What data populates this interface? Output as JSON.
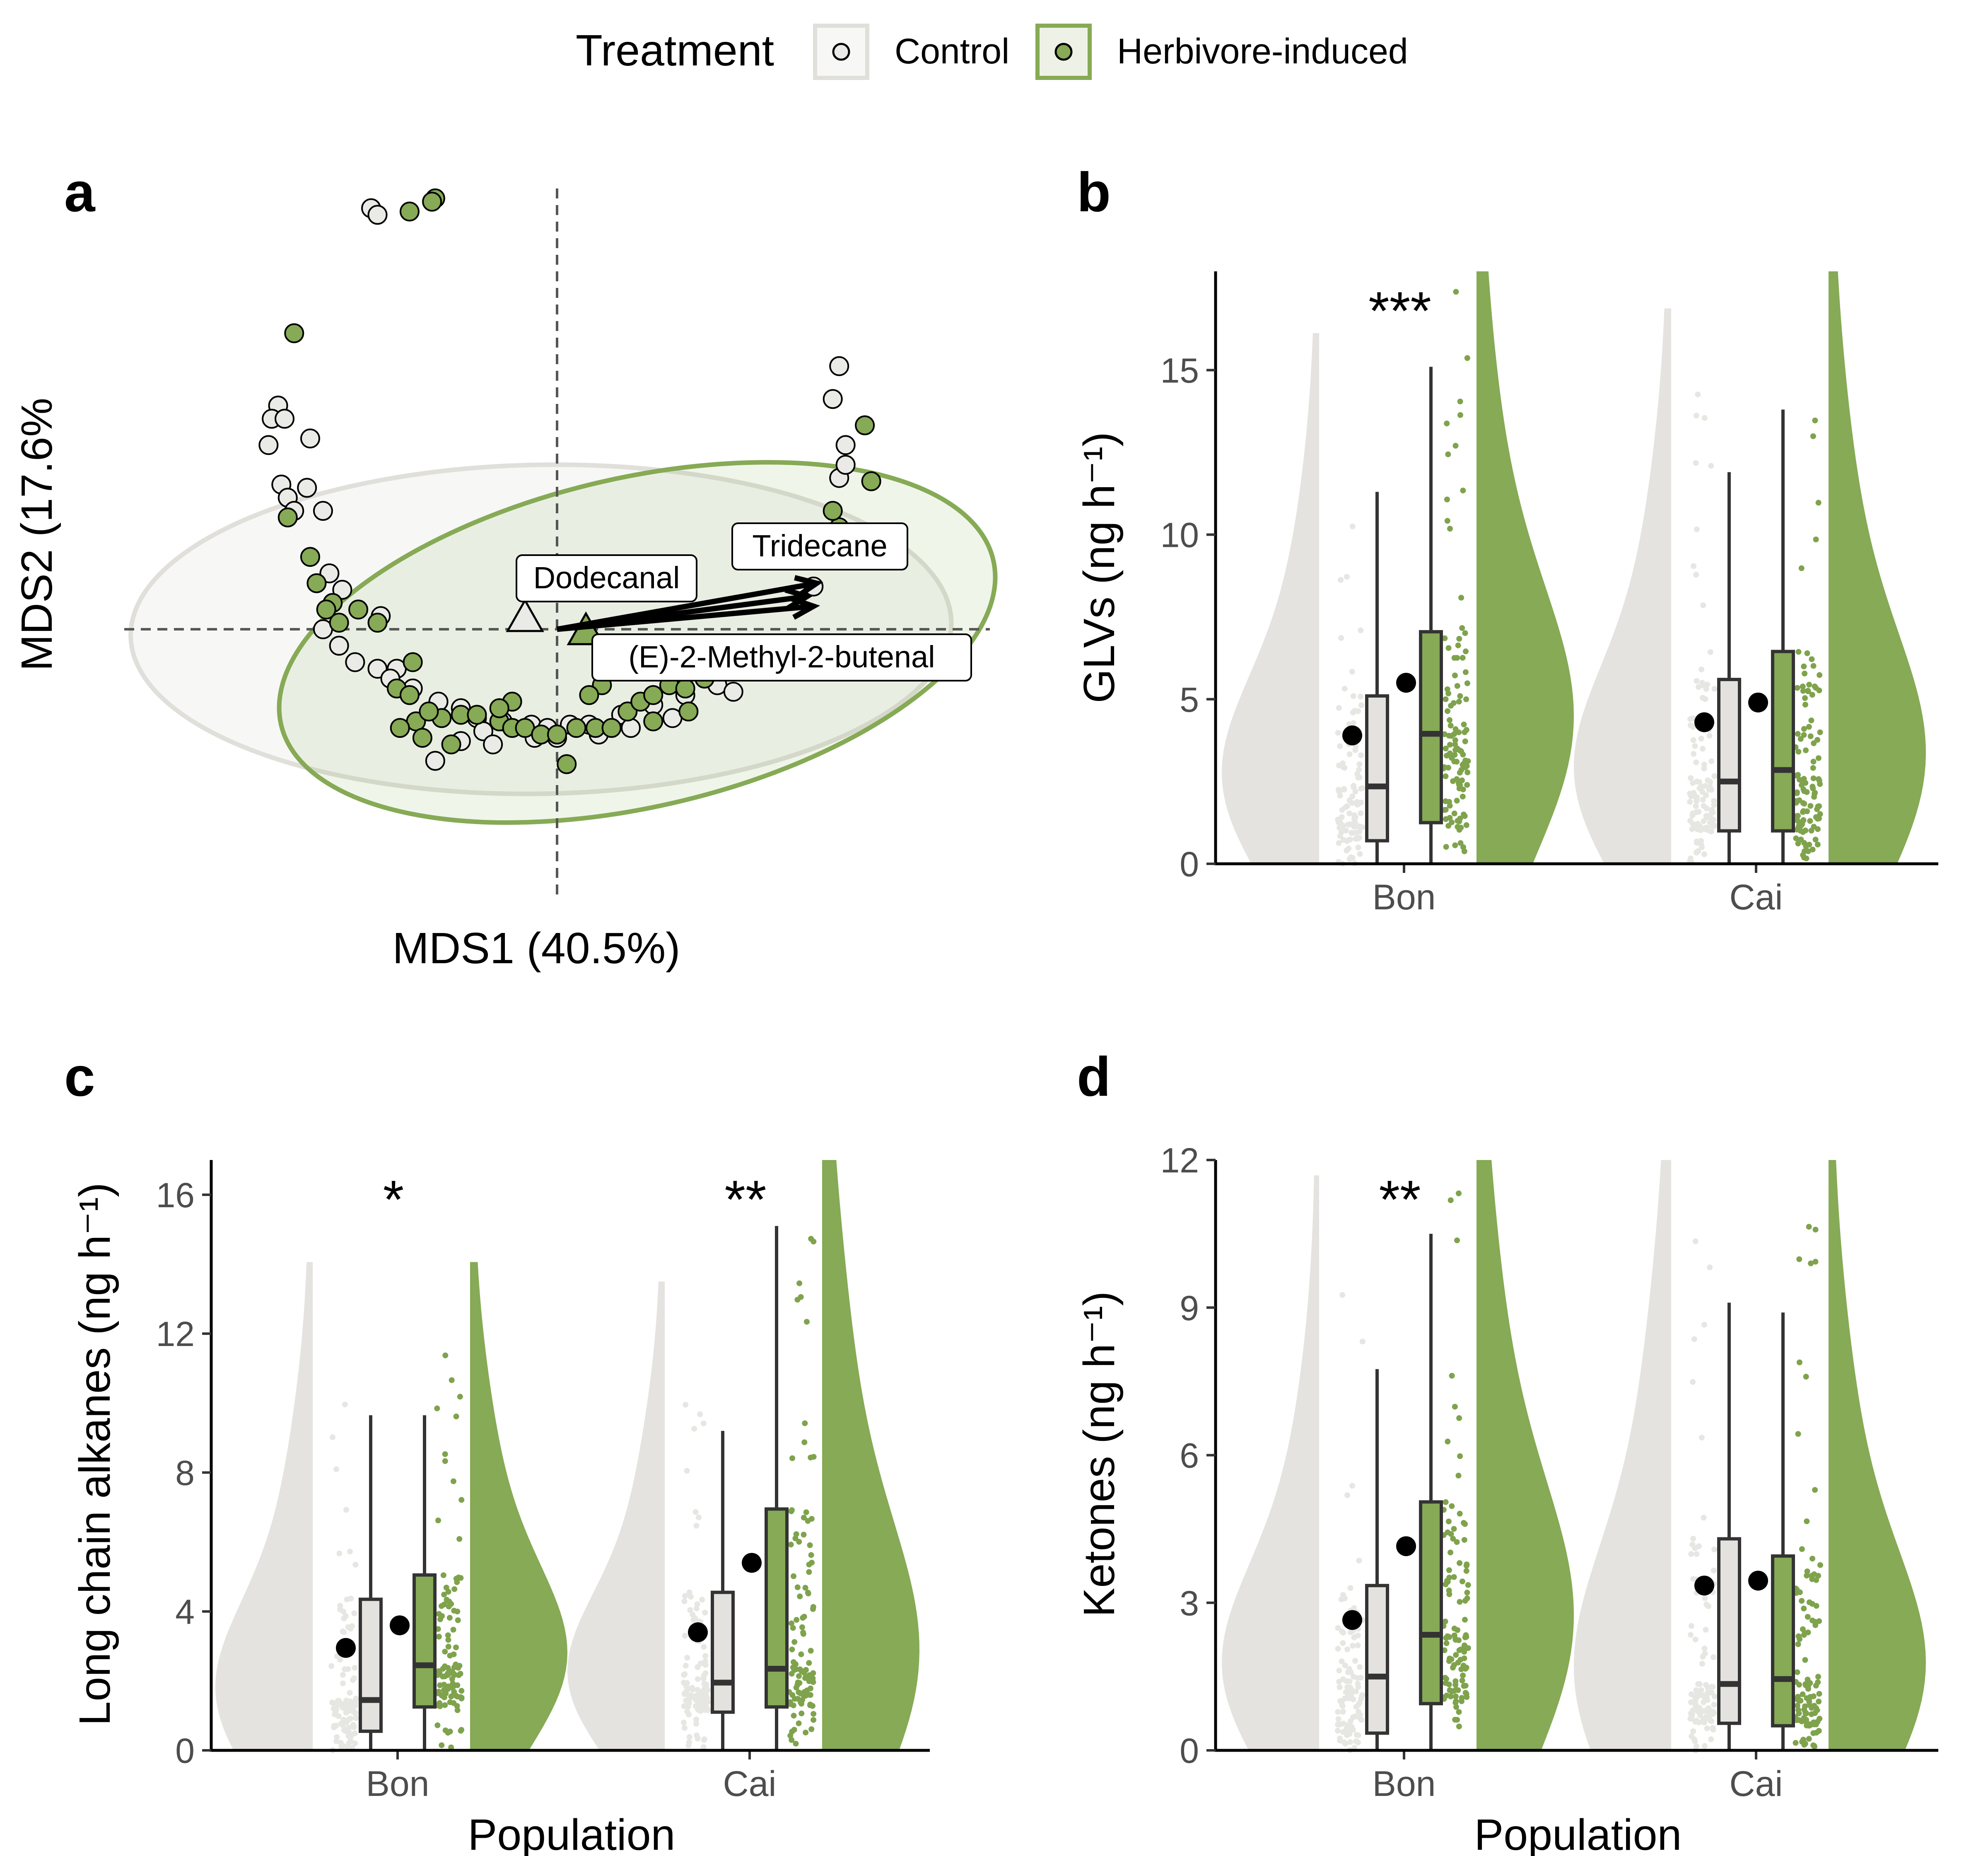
{
  "legend": {
    "title": "Treatment",
    "items": [
      {
        "key": "control",
        "label": "Control"
      },
      {
        "key": "herb",
        "label": "Herbivore-induced"
      }
    ]
  },
  "colors": {
    "control_fill": "#e3e2de",
    "control_stroke": "#e0dfda",
    "herb_fill": "#86aa55",
    "herb_stroke": "#80a44f",
    "control_point": "#e6e6e2",
    "herb_point": "#7fa34d",
    "box_line": "#333333",
    "axis": "#000000",
    "dashed": "#555555"
  },
  "chart_data": [
    {
      "panel": "a",
      "type": "scatter",
      "xlabel": "MDS1 (40.5%)",
      "ylabel": "MDS2 (17.6%",
      "xlim": [
        -1.35,
        1.35
      ],
      "ylim": [
        -0.82,
        1.34
      ],
      "zero_lines": true,
      "series": [
        {
          "key": "control",
          "points": [
            [
              -0.58,
              1.28
            ],
            [
              -0.56,
              1.26
            ],
            [
              -0.87,
              0.68
            ],
            [
              -0.89,
              0.64
            ],
            [
              -0.85,
              0.64
            ],
            [
              -0.9,
              0.56
            ],
            [
              -0.77,
              0.58
            ],
            [
              -0.86,
              0.44
            ],
            [
              -0.78,
              0.43
            ],
            [
              -0.84,
              0.4
            ],
            [
              -0.82,
              0.36
            ],
            [
              -0.73,
              0.36
            ],
            [
              -0.71,
              0.17
            ],
            [
              -0.67,
              0.12
            ],
            [
              -0.55,
              0.04
            ],
            [
              -0.73,
              0.0
            ],
            [
              -0.68,
              -0.05
            ],
            [
              -0.63,
              -0.1
            ],
            [
              -0.56,
              -0.12
            ],
            [
              -0.5,
              -0.12
            ],
            [
              -0.52,
              -0.15
            ],
            [
              -0.45,
              -0.18
            ],
            [
              -0.37,
              -0.22
            ],
            [
              -0.3,
              -0.24
            ],
            [
              -0.25,
              -0.27
            ],
            [
              -0.17,
              -0.28
            ],
            [
              -0.08,
              -0.29
            ],
            [
              -0.03,
              -0.3
            ],
            [
              0.04,
              -0.29
            ],
            [
              -0.3,
              -0.34
            ],
            [
              -0.23,
              -0.31
            ],
            [
              0.0,
              -0.33
            ],
            [
              0.1,
              -0.29
            ],
            [
              0.2,
              -0.26
            ],
            [
              0.3,
              -0.23
            ],
            [
              0.4,
              -0.2
            ],
            [
              0.5,
              -0.17
            ],
            [
              0.58,
              -0.12
            ],
            [
              0.66,
              -0.09
            ],
            [
              0.72,
              -0.08
            ],
            [
              -0.07,
              -0.33
            ],
            [
              0.13,
              -0.32
            ],
            [
              0.23,
              -0.3
            ],
            [
              0.36,
              -0.27
            ],
            [
              0.55,
              -0.19
            ],
            [
              0.88,
              0.8
            ],
            [
              0.86,
              0.7
            ],
            [
              0.9,
              0.56
            ],
            [
              0.88,
              0.46
            ],
            [
              0.83,
              0.22
            ],
            [
              0.8,
              0.13
            ],
            [
              -0.2,
              -0.35
            ],
            [
              -0.38,
              -0.4
            ],
            [
              0.9,
              0.5
            ]
          ]
        },
        {
          "key": "herb",
          "points": [
            [
              -0.46,
              1.27
            ],
            [
              -0.38,
              1.31
            ],
            [
              -0.39,
              1.3
            ],
            [
              -0.82,
              0.9
            ],
            [
              -0.84,
              0.34
            ],
            [
              -0.77,
              0.22
            ],
            [
              -0.75,
              0.14
            ],
            [
              -0.7,
              0.08
            ],
            [
              -0.72,
              0.06
            ],
            [
              -0.68,
              0.02
            ],
            [
              -0.62,
              0.06
            ],
            [
              -0.56,
              0.02
            ],
            [
              -0.45,
              -0.1
            ],
            [
              -0.5,
              -0.18
            ],
            [
              -0.46,
              -0.2
            ],
            [
              -0.44,
              -0.28
            ],
            [
              -0.49,
              -0.3
            ],
            [
              -0.42,
              -0.33
            ],
            [
              -0.36,
              -0.27
            ],
            [
              -0.3,
              -0.26
            ],
            [
              -0.25,
              -0.26
            ],
            [
              -0.18,
              -0.28
            ],
            [
              -0.14,
              -0.3
            ],
            [
              -0.1,
              -0.3
            ],
            [
              -0.05,
              -0.32
            ],
            [
              0.0,
              -0.32
            ],
            [
              0.06,
              -0.3
            ],
            [
              0.12,
              -0.3
            ],
            [
              0.17,
              -0.3
            ],
            [
              0.22,
              -0.25
            ],
            [
              0.26,
              -0.22
            ],
            [
              0.3,
              -0.2
            ],
            [
              0.35,
              -0.17
            ],
            [
              0.4,
              -0.18
            ],
            [
              0.46,
              -0.15
            ],
            [
              0.52,
              -0.12
            ],
            [
              0.58,
              -0.11
            ],
            [
              0.64,
              -0.1
            ],
            [
              0.7,
              -0.09
            ],
            [
              -0.4,
              -0.25
            ],
            [
              -0.33,
              -0.35
            ],
            [
              0.3,
              -0.28
            ],
            [
              0.41,
              -0.25
            ],
            [
              -0.14,
              -0.22
            ],
            [
              -0.18,
              -0.24
            ],
            [
              0.14,
              -0.17
            ],
            [
              0.1,
              -0.2
            ],
            [
              0.85,
              0.28
            ],
            [
              0.88,
              0.31
            ],
            [
              0.86,
              0.36
            ],
            [
              0.96,
              0.62
            ],
            [
              0.98,
              0.45
            ],
            [
              0.92,
              0.24
            ],
            [
              0.03,
              -0.41
            ]
          ]
        }
      ],
      "ellipses": [
        {
          "key": "control",
          "cx": -0.05,
          "cy": 0.0,
          "rx": 1.28,
          "ry": 0.5,
          "angle_deg": 1
        },
        {
          "key": "herb",
          "cx": 0.25,
          "cy": -0.04,
          "rx": 1.14,
          "ry": 0.5,
          "angle_deg": 13
        }
      ],
      "centroids": [
        {
          "key": "control",
          "x": -0.1,
          "y": 0.03
        },
        {
          "key": "herb",
          "x": 0.09,
          "y": -0.01
        }
      ],
      "vectors": [
        {
          "label": "Dodecanal",
          "x": 0.81,
          "y": 0.14
        },
        {
          "label": "Tridecane",
          "x": 0.78,
          "y": 0.1
        },
        {
          "label": "(E)-2-Methyl-2-butenal",
          "x": 0.8,
          "y": 0.07
        }
      ]
    },
    {
      "panel": "b",
      "type": "box",
      "ylabel": "GLVs (ng h⁻¹)",
      "xlabel": "",
      "ylim": [
        0,
        18
      ],
      "yticks": [
        0,
        5,
        10,
        15
      ],
      "categories": [
        "Bon",
        "Cai"
      ],
      "significance": [
        "***",
        ""
      ],
      "series": [
        {
          "key": "control",
          "boxes": [
            {
              "q1": 0.7,
              "median": 2.35,
              "q3": 5.1,
              "whisker_low": 0,
              "whisker_high": 11.3,
              "mean": 3.9
            },
            {
              "q1": 1.0,
              "median": 2.5,
              "q3": 5.6,
              "whisker_low": 0,
              "whisker_high": 11.9,
              "mean": 4.3
            }
          ]
        },
        {
          "key": "herb",
          "boxes": [
            {
              "q1": 1.25,
              "median": 3.95,
              "q3": 7.05,
              "whisker_low": 0,
              "whisker_high": 15.1,
              "mean": 5.5
            },
            {
              "q1": 1.0,
              "median": 2.85,
              "q3": 6.45,
              "whisker_low": 0,
              "whisker_high": 13.8,
              "mean": 4.9
            }
          ]
        }
      ]
    },
    {
      "panel": "c",
      "type": "box",
      "ylabel": "Long chain alkanes (ng h⁻¹)",
      "xlabel": "Population",
      "ylim": [
        0,
        17
      ],
      "yticks": [
        0,
        4,
        8,
        12,
        16
      ],
      "categories": [
        "Bon",
        "Cai"
      ],
      "significance": [
        "*",
        "**"
      ],
      "series": [
        {
          "key": "control",
          "boxes": [
            {
              "q1": 0.55,
              "median": 1.45,
              "q3": 4.35,
              "whisker_low": 0,
              "whisker_high": 9.65,
              "mean": 2.95
            },
            {
              "q1": 1.1,
              "median": 1.95,
              "q3": 4.55,
              "whisker_low": 0,
              "whisker_high": 9.2,
              "mean": 3.4
            }
          ]
        },
        {
          "key": "herb",
          "boxes": [
            {
              "q1": 1.25,
              "median": 2.45,
              "q3": 5.05,
              "whisker_low": 0,
              "whisker_high": 9.65,
              "mean": 3.6
            },
            {
              "q1": 1.25,
              "median": 2.35,
              "q3": 6.95,
              "whisker_low": 0,
              "whisker_high": 15.1,
              "mean": 5.4
            }
          ]
        }
      ]
    },
    {
      "panel": "d",
      "type": "box",
      "ylabel": "Ketones (ng h⁻¹)",
      "xlabel": "Population",
      "ylim": [
        0,
        12
      ],
      "yticks": [
        0,
        3,
        6,
        9,
        12
      ],
      "categories": [
        "Bon",
        "Cai"
      ],
      "significance": [
        "**",
        ""
      ],
      "series": [
        {
          "key": "control",
          "boxes": [
            {
              "q1": 0.35,
              "median": 1.5,
              "q3": 3.35,
              "whisker_low": 0,
              "whisker_high": 7.75,
              "mean": 2.65
            },
            {
              "q1": 0.55,
              "median": 1.35,
              "q3": 4.3,
              "whisker_low": 0,
              "whisker_high": 9.1,
              "mean": 3.35
            }
          ]
        },
        {
          "key": "herb",
          "boxes": [
            {
              "q1": 0.95,
              "median": 2.35,
              "q3": 5.05,
              "whisker_low": 0,
              "whisker_high": 10.5,
              "mean": 4.15
            },
            {
              "q1": 0.5,
              "median": 1.45,
              "q3": 3.95,
              "whisker_low": 0,
              "whisker_high": 8.9,
              "mean": 3.45
            }
          ]
        }
      ]
    }
  ]
}
